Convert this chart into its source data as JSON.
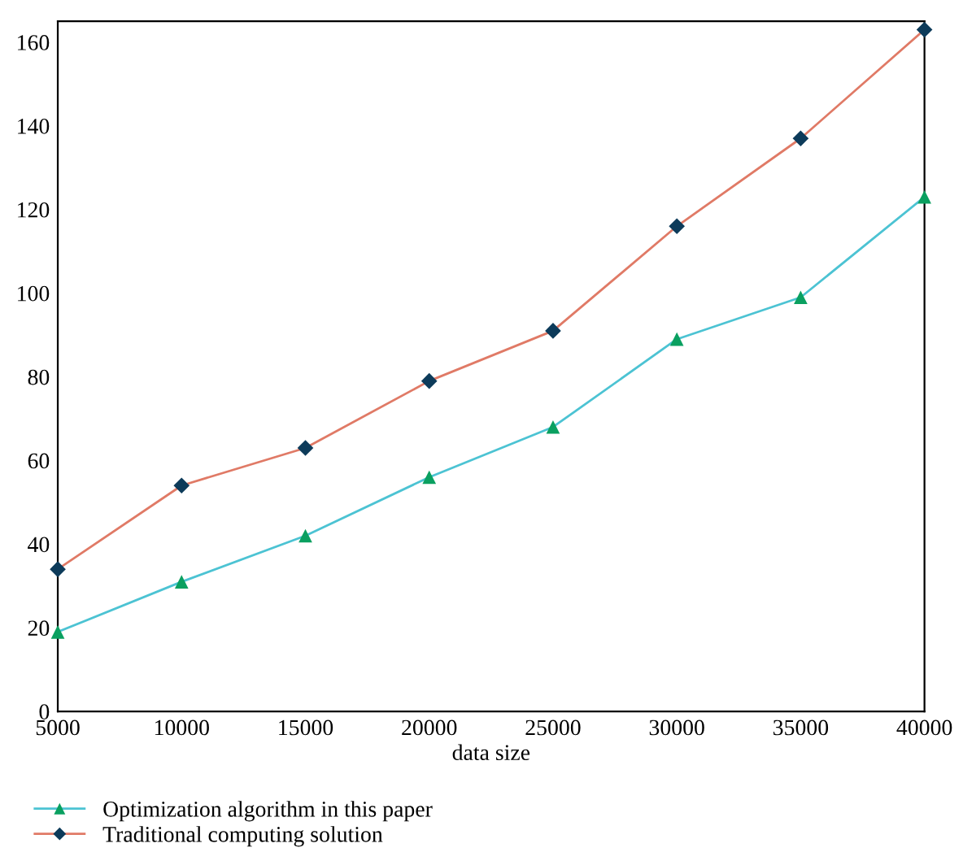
{
  "chart_data": {
    "type": "line",
    "xlabel": "data size",
    "x": [
      5000,
      10000,
      15000,
      20000,
      25000,
      30000,
      35000,
      40000
    ],
    "series": [
      {
        "name": "Optimization algorithm in this paper",
        "color": "#4cc3d3",
        "colors": [
          "#0aa060",
          "#0aa060",
          "#0aa060",
          "#0aa060",
          "#0aa060",
          "#0aa060",
          "#0aa060",
          "#0aa060"
        ],
        "marker": "triangle",
        "values": [
          19,
          31,
          42,
          56,
          68,
          89,
          99,
          123
        ]
      },
      {
        "name": "Traditional computing solution",
        "color": "#e07a66",
        "colors": [
          "#0d3b5a",
          "#0d3b5a",
          "#0d3b5a",
          "#0d3b5a",
          "#0d3b5a",
          "#0d3b5a",
          "#0d3b5a",
          "#0d3b5a"
        ],
        "marker": "diamond",
        "values": [
          34,
          54,
          63,
          79,
          91,
          116,
          137,
          163
        ]
      }
    ],
    "xlim": [
      5000,
      40000
    ],
    "xticks": [
      5000,
      10000,
      15000,
      20000,
      25000,
      30000,
      35000,
      40000
    ],
    "ylim": [
      0,
      165
    ],
    "yticks": [
      0,
      20,
      40,
      60,
      80,
      100,
      120,
      140,
      160
    ],
    "grid": false,
    "legend": "bottom left",
    "line_style": "solid"
  }
}
